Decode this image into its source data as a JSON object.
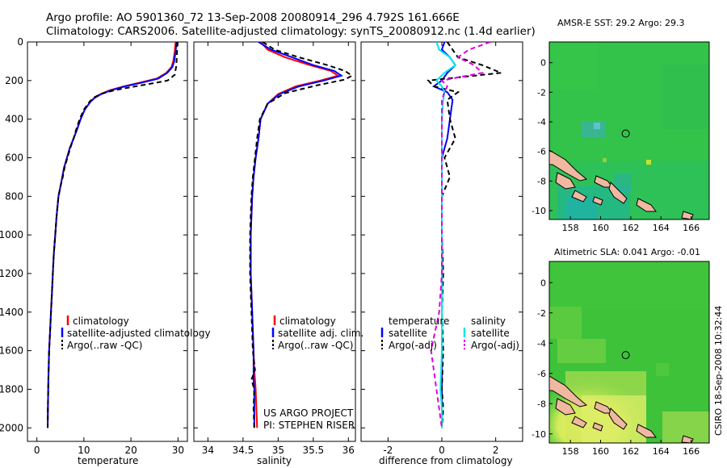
{
  "header": {
    "line1": "Argo profile: AO 5901360_72 13-Sep-2008 20080914_296 4.792S 161.666E",
    "line2": "Climatology: CARS2006. Satellite-adjusted climatology: synTS_20080912.nc (1.4d earlier)"
  },
  "side_label": "CSIRO 18-Sep-2008 10:32:44",
  "chart_data": [
    {
      "type": "line",
      "id": "temperature",
      "xlabel": "temperature",
      "ylabel": "",
      "xlim": [
        -2,
        32
      ],
      "ylim": [
        0,
        2070
      ],
      "y_reversed": true,
      "xticks": [
        0,
        10,
        20,
        30
      ],
      "yticks": [
        0,
        200,
        400,
        600,
        800,
        1000,
        1200,
        1400,
        1600,
        1800,
        2000
      ],
      "colors": {
        "climatology": "#ff0000",
        "satellite": "#0000ff",
        "argo": "#000000"
      },
      "legend": [
        "climatology",
        "satellite-adjusted climatology",
        "Argo(..raw -QC)"
      ],
      "series": [
        {
          "name": "climatology",
          "style": "solid",
          "color": "#ff0000",
          "x": [
            29.5,
            29.3,
            29.0,
            28.6,
            27.5,
            25.5,
            22,
            18.5,
            15.5,
            13.5,
            12.2,
            11.4,
            10.2,
            9.3,
            8.6,
            7.8,
            7.0,
            6.4,
            5.8,
            5.4,
            5.0,
            4.6,
            4.2,
            3.9,
            3.6,
            3.4,
            3.2,
            3.0,
            2.8,
            2.6,
            2.45,
            2.35,
            2.3
          ],
          "y": [
            0,
            50,
            100,
            130,
            160,
            190,
            210,
            230,
            250,
            270,
            290,
            310,
            350,
            400,
            450,
            500,
            550,
            600,
            650,
            700,
            750,
            800,
            900,
            1000,
            1100,
            1200,
            1300,
            1400,
            1500,
            1600,
            1750,
            1900,
            2000
          ]
        },
        {
          "name": "satellite-adjusted climatology",
          "style": "solid",
          "color": "#0000ff",
          "x": [
            29.7,
            29.5,
            29.2,
            28.8,
            27.7,
            25.8,
            22.5,
            18.8,
            15.8,
            13.7,
            12.3,
            11.4,
            10.2,
            9.3,
            8.6,
            7.8,
            7.0,
            6.4,
            5.8,
            5.4,
            5.0,
            4.6,
            4.2,
            3.9,
            3.6,
            3.4,
            3.2,
            3.0,
            2.8,
            2.6,
            2.45,
            2.35,
            2.3
          ],
          "y": [
            0,
            50,
            100,
            130,
            160,
            190,
            210,
            230,
            250,
            270,
            290,
            310,
            350,
            400,
            450,
            500,
            550,
            600,
            650,
            700,
            750,
            800,
            900,
            1000,
            1100,
            1200,
            1300,
            1400,
            1500,
            1600,
            1750,
            1900,
            2000
          ]
        },
        {
          "name": "Argo(..raw -QC)",
          "style": "dashed",
          "color": "#000000",
          "x": [
            29.8,
            29.8,
            29.7,
            29.6,
            29.3,
            27.8,
            24.5,
            20.5,
            16.5,
            13.5,
            12,
            11.2,
            10.0,
            9.1,
            8.4,
            7.8,
            7.1,
            6.5,
            5.9,
            5.5,
            5.0,
            4.6,
            4.2,
            3.9,
            3.6,
            3.4,
            3.2,
            3.0,
            2.8,
            2.6,
            2.45,
            2.35,
            2.3
          ],
          "y": [
            0,
            50,
            100,
            130,
            170,
            200,
            215,
            232,
            250,
            270,
            290,
            310,
            350,
            400,
            450,
            500,
            550,
            600,
            650,
            700,
            750,
            800,
            900,
            1000,
            1100,
            1200,
            1300,
            1400,
            1500,
            1600,
            1750,
            1900,
            2000
          ]
        }
      ]
    },
    {
      "type": "line",
      "id": "salinity",
      "xlabel": "salinity",
      "ylabel": "",
      "xlim": [
        33.8,
        36.1
      ],
      "ylim": [
        0,
        2070
      ],
      "y_reversed": true,
      "xticks": [
        34,
        34.5,
        35,
        35.5,
        36
      ],
      "xtick_labels": [
        "34",
        "34.5",
        "35",
        "35.5",
        "36"
      ],
      "legend": [
        "climatology",
        "satellite adj. clim.",
        "Argo(..raw -QC)"
      ],
      "annotation": [
        "US ARGO PROJECT",
        "PI: STEPHEN RISER"
      ],
      "series": [
        {
          "name": "climatology",
          "style": "solid",
          "color": "#ff0000",
          "x": [
            34.75,
            34.85,
            35.1,
            35.45,
            35.75,
            35.85,
            35.6,
            35.25,
            35.0,
            34.85,
            34.75,
            34.72,
            34.68,
            34.65,
            34.63,
            34.62,
            34.61,
            34.61,
            34.61,
            34.62,
            34.63,
            34.64,
            34.65,
            34.66,
            34.67,
            34.68,
            34.69,
            34.7
          ],
          "y": [
            0,
            40,
            80,
            120,
            150,
            175,
            200,
            230,
            270,
            320,
            400,
            500,
            600,
            700,
            800,
            900,
            1000,
            1100,
            1200,
            1300,
            1400,
            1500,
            1600,
            1700,
            1750,
            1800,
            1900,
            2000
          ]
        },
        {
          "name": "satellite adj. clim.",
          "style": "solid",
          "color": "#0000ff",
          "x": [
            34.72,
            34.9,
            35.2,
            35.5,
            35.8,
            35.9,
            35.65,
            35.3,
            35.02,
            34.85,
            34.75,
            34.72,
            34.68,
            34.65,
            34.63,
            34.62,
            34.61,
            34.61,
            34.61,
            34.62,
            34.63,
            34.64,
            34.65,
            34.65,
            34.65,
            34.66,
            34.66,
            34.66
          ],
          "y": [
            0,
            40,
            80,
            120,
            150,
            175,
            200,
            230,
            270,
            320,
            400,
            500,
            600,
            700,
            800,
            900,
            1000,
            1100,
            1200,
            1300,
            1400,
            1500,
            1600,
            1700,
            1750,
            1800,
            1900,
            2000
          ]
        },
        {
          "name": "Argo(..raw -QC)",
          "style": "dashed",
          "color": "#000000",
          "x": [
            34.78,
            34.95,
            35.3,
            35.7,
            35.95,
            36.05,
            35.95,
            35.55,
            35.1,
            34.85,
            34.74,
            34.7,
            34.67,
            34.64,
            34.62,
            34.61,
            34.6,
            34.6,
            34.6,
            34.61,
            34.62,
            34.63,
            34.64,
            34.67,
            34.62,
            34.66,
            34.65,
            34.66
          ],
          "y": [
            0,
            40,
            80,
            120,
            150,
            175,
            195,
            225,
            265,
            320,
            400,
            500,
            600,
            700,
            800,
            900,
            1000,
            1100,
            1200,
            1300,
            1400,
            1500,
            1600,
            1700,
            1750,
            1800,
            1900,
            2000
          ]
        }
      ]
    },
    {
      "type": "line",
      "id": "difference",
      "xlabel": "difference from climatology",
      "ylabel": "",
      "xlim": [
        -3,
        3
      ],
      "ylim": [
        0,
        2070
      ],
      "y_reversed": true,
      "xticks": [
        -2,
        0,
        2
      ],
      "legend_titles": [
        "temperature",
        "salinity"
      ],
      "legend": [
        "satellite",
        "Argo(-adj)",
        "satellite",
        "Argo(-adj)"
      ],
      "series": [
        {
          "name": "temperature satellite",
          "style": "solid",
          "color": "#0000ff",
          "x": [
            0.1,
            0.0,
            0.3,
            0.5,
            0.2,
            0.0,
            -0.3,
            0.2,
            0.4,
            0.3,
            0.2,
            0.0,
            0.0,
            0.0,
            0.0,
            0.0,
            0.0,
            0.0,
            0.0,
            0.0,
            0.0
          ],
          "y": [
            0,
            40,
            80,
            120,
            160,
            200,
            230,
            260,
            300,
            400,
            500,
            600,
            700,
            800,
            1000,
            1200,
            1400,
            1600,
            1800,
            1900,
            2000
          ]
        },
        {
          "name": "temperature Argo(-adj)",
          "style": "dashed",
          "color": "#000000",
          "x": [
            0.2,
            0.4,
            0.6,
            1.5,
            2.2,
            -0.5,
            -0.3,
            0.6,
            0.2,
            0.3,
            0.5,
            0.1,
            0.3,
            0.0,
            0.0,
            0.05,
            0.0,
            0.05,
            0.0,
            0.05,
            0.0
          ],
          "y": [
            0,
            40,
            80,
            120,
            160,
            200,
            230,
            260,
            300,
            400,
            500,
            600,
            700,
            800,
            1000,
            1200,
            1400,
            1600,
            1800,
            1900,
            2000
          ]
        },
        {
          "name": "salinity satellite",
          "style": "solid",
          "color": "#00e5ee",
          "x": [
            -0.2,
            -0.1,
            0.3,
            0.5,
            0.1,
            -0.2,
            0.0,
            0.1,
            0.05,
            0.0,
            0.0,
            0.0,
            0.0,
            0.0,
            0.0,
            0.0,
            0.0,
            0.0,
            -0.05,
            0.0,
            0.0
          ],
          "y": [
            0,
            40,
            80,
            120,
            160,
            200,
            230,
            260,
            300,
            400,
            500,
            600,
            700,
            800,
            1000,
            1200,
            1400,
            1600,
            1800,
            1900,
            2000
          ]
        },
        {
          "name": "salinity Argo(-adj)",
          "style": "dashed",
          "color": "#e000e0",
          "x": [
            1.8,
            1.0,
            0.6,
            1.2,
            1.5,
            0.0,
            0.2,
            0.1,
            0.0,
            0.0,
            0.0,
            0.0,
            0.0,
            0.0,
            0.0,
            0.0,
            -0.1,
            -0.4,
            -0.2,
            -0.1,
            0.0
          ],
          "y": [
            0,
            40,
            80,
            120,
            160,
            200,
            230,
            260,
            300,
            400,
            500,
            600,
            700,
            800,
            1000,
            1200,
            1400,
            1600,
            1800,
            1900,
            2000
          ]
        }
      ]
    },
    {
      "type": "heatmap",
      "id": "sst_map",
      "title": "AMSR-E SST: 29.2  Argo: 29.3",
      "xlim": [
        156.6,
        167.2
      ],
      "ylim": [
        -10.6,
        1.4
      ],
      "xticks": [
        158,
        160,
        162,
        164,
        166
      ],
      "yticks": [
        0,
        -2,
        -4,
        -6,
        -8,
        -10
      ],
      "marker": {
        "lon": 161.666,
        "lat": -4.792
      },
      "colors": {
        "field": "#33c24a",
        "land": "#f0b8a0"
      }
    },
    {
      "type": "heatmap",
      "id": "sla_map",
      "title": "Altimetric SLA: 0.041  Argo: -0.01",
      "xlim": [
        156.6,
        167.2
      ],
      "ylim": [
        -10.6,
        1.4
      ],
      "xticks": [
        158,
        160,
        162,
        164,
        166
      ],
      "yticks": [
        0,
        -2,
        -4,
        -6,
        -8,
        -10
      ],
      "marker": {
        "lon": 161.666,
        "lat": -4.792
      },
      "colors": {
        "field": "#3ec23a",
        "high": "#e4f060",
        "land": "#f0b8a0"
      }
    }
  ]
}
